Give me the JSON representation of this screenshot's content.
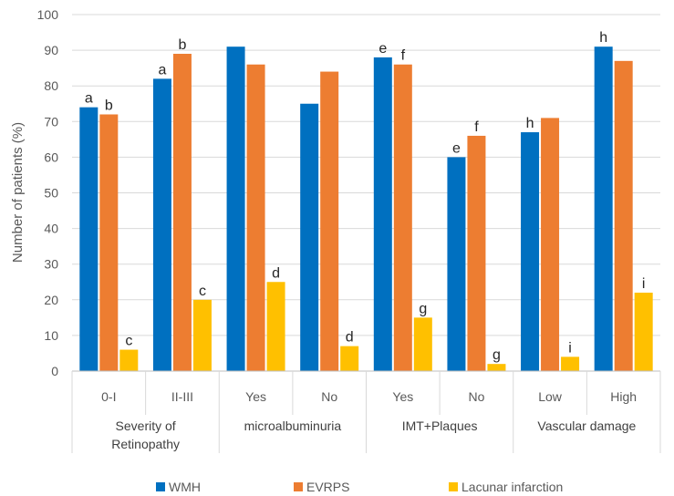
{
  "chart_data": {
    "type": "bar",
    "ylabel": "Number of patients (%)",
    "ylim": [
      0,
      100
    ],
    "yticks": [
      0,
      10,
      20,
      30,
      40,
      50,
      60,
      70,
      80,
      90,
      100
    ],
    "grid": true,
    "legend_position": "bottom",
    "categories": [
      "0-I",
      "II-III",
      "Yes",
      "No",
      "Yes",
      "No",
      "Low",
      "High"
    ],
    "groups": [
      {
        "label": [
          "Severity of",
          "Retinopathy"
        ],
        "span": 2
      },
      {
        "label": [
          "microalbuminuria"
        ],
        "span": 2
      },
      {
        "label": [
          "IMT+Plaques"
        ],
        "span": 2
      },
      {
        "label": [
          "Vascular damage"
        ],
        "span": 2
      }
    ],
    "series": [
      {
        "name": "WMH",
        "color": "#0070C0",
        "values": [
          74,
          82,
          91,
          75,
          88,
          60,
          67,
          91
        ],
        "labels": [
          "a",
          "a",
          "",
          "",
          "e",
          "e",
          "h",
          "h"
        ]
      },
      {
        "name": "EVRPS",
        "color": "#ED7D31",
        "values": [
          72,
          89,
          86,
          84,
          86,
          66,
          71,
          87
        ],
        "labels": [
          "b",
          "b",
          "",
          "",
          "f",
          "f",
          "",
          ""
        ]
      },
      {
        "name": "Lacunar infarction",
        "color": "#FFC000",
        "values": [
          6,
          20,
          25,
          7,
          15,
          2,
          4,
          22
        ],
        "labels": [
          "c",
          "c",
          "d",
          "d",
          "g",
          "g",
          "i",
          "i"
        ]
      }
    ]
  }
}
